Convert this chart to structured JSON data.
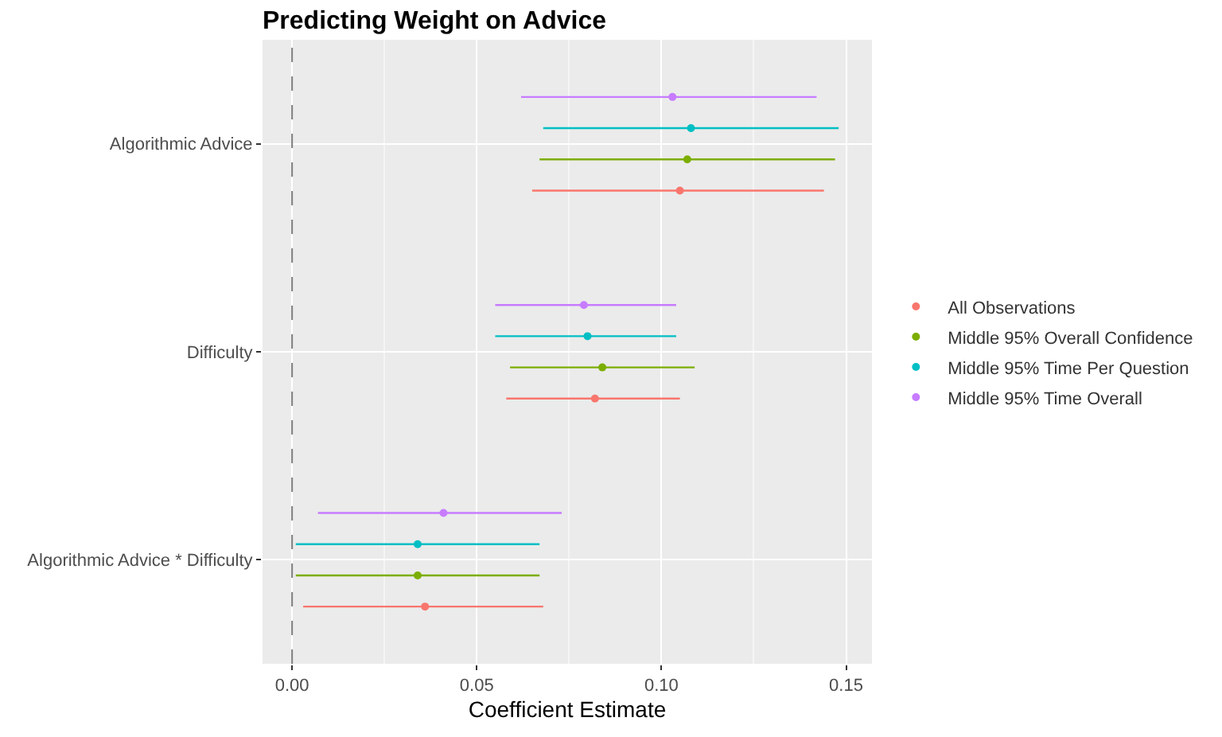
{
  "chart_data": {
    "type": "scatter",
    "orientation": "horizontal",
    "title": "Predicting Weight on Advice",
    "xlabel": "Coefficient Estimate",
    "categories": [
      "Algorithmic Advice",
      "Difficulty",
      "Algorithmic Advice * Difficulty"
    ],
    "series": [
      {
        "name": "All Observations",
        "color": "#F8766D",
        "values": [
          0.105,
          0.082,
          0.036
        ],
        "errors": [
          [
            0.065,
            0.144
          ],
          [
            0.058,
            0.105
          ],
          [
            0.003,
            0.068
          ]
        ]
      },
      {
        "name": "Middle 95% Overall Confidence",
        "color": "#7CAE00",
        "values": [
          0.107,
          0.084,
          0.034
        ],
        "errors": [
          [
            0.067,
            0.147
          ],
          [
            0.059,
            0.109
          ],
          [
            0.001,
            0.067
          ]
        ]
      },
      {
        "name": "Middle 95% Time Per Question",
        "color": "#00BFC4",
        "values": [
          0.108,
          0.08,
          0.034
        ],
        "errors": [
          [
            0.068,
            0.148
          ],
          [
            0.055,
            0.104
          ],
          [
            0.001,
            0.067
          ]
        ]
      },
      {
        "name": "Middle 95% Time Overall",
        "color": "#C77CFF",
        "values": [
          0.103,
          0.079,
          0.041
        ],
        "errors": [
          [
            0.062,
            0.142
          ],
          [
            0.055,
            0.104
          ],
          [
            0.007,
            0.073
          ]
        ]
      }
    ],
    "xlim": [
      -0.008,
      0.157
    ],
    "xticks": [
      {
        "value": 0,
        "label": "0.00"
      },
      {
        "value": 0.05,
        "label": "0.05"
      },
      {
        "value": 0.1,
        "label": "0.10"
      },
      {
        "value": 0.15,
        "label": "0.15"
      }
    ],
    "ref_lines": [
      {
        "axis": "x",
        "value": 0,
        "color": "#7f7f7f",
        "line_style": "dashed"
      }
    ],
    "grid": true,
    "legend": "right",
    "marker": "circle"
  }
}
